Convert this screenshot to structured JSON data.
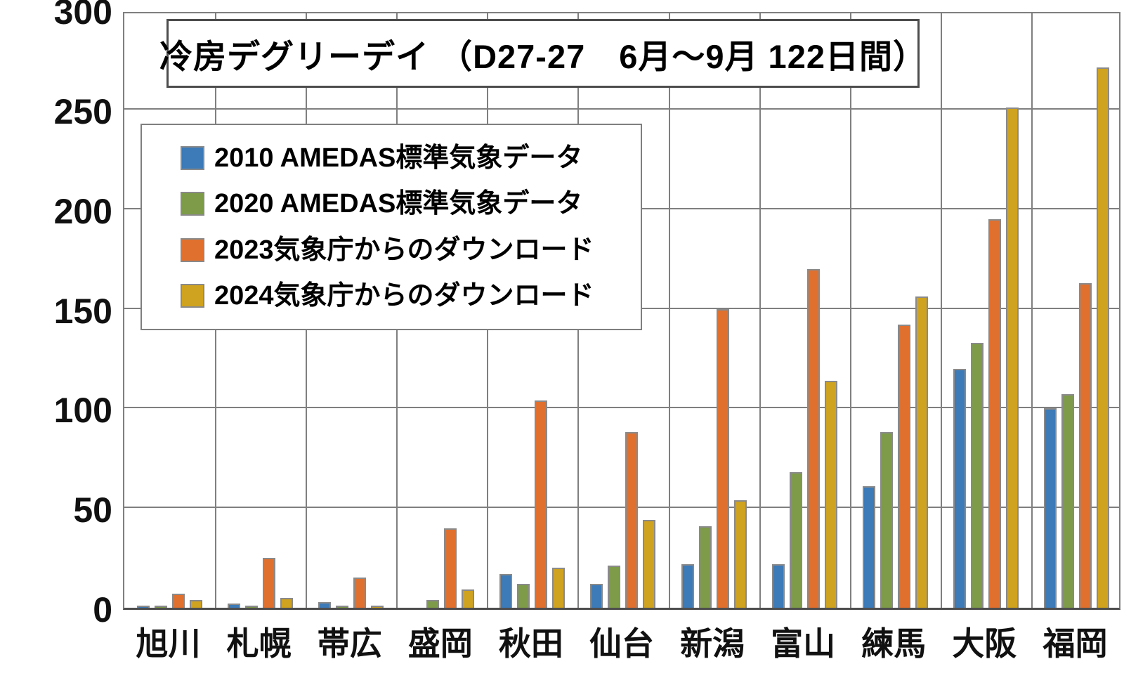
{
  "chart_data": {
    "type": "bar",
    "title": "冷房デグリーデイ （D27-27　6月～9月 122日間）",
    "categories": [
      "旭川",
      "札幌",
      "帯広",
      "盛岡",
      "秋田",
      "仙台",
      "新潟",
      "富山",
      "練馬",
      "大阪",
      "福岡"
    ],
    "series": [
      {
        "name": "2010 AMEDAS標準気象データ",
        "color": "#3c7ab8",
        "values": [
          1,
          2,
          3,
          0,
          17,
          12,
          22,
          22,
          61,
          120,
          100
        ]
      },
      {
        "name": "2020 AMEDAS標準気象データ",
        "color": "#7d9b49",
        "values": [
          1,
          1,
          1,
          4,
          12,
          21,
          41,
          68,
          88,
          133,
          107
        ]
      },
      {
        "name": "2023気象庁からのダウンロード",
        "color": "#e0702e",
        "values": [
          7,
          25,
          15,
          40,
          104,
          88,
          150,
          170,
          142,
          195,
          163
        ]
      },
      {
        "name": "2024気象庁からのダウンロード",
        "color": "#cfa21f",
        "values": [
          4,
          5,
          1,
          9,
          20,
          44,
          54,
          114,
          156,
          251,
          271
        ]
      }
    ],
    "xlabel": "",
    "ylabel": "",
    "ylim": [
      0,
      300
    ],
    "ytick_interval": 50,
    "yticks": [
      "0",
      "50",
      "100",
      "150",
      "200",
      "250",
      "300"
    ],
    "grid": true,
    "legend_position": "upper-left-inside",
    "colors": {
      "gridline": "#7f7f7f",
      "axis": "#4d4d4d",
      "bar_border": "#8a8a8a",
      "background": "#ffffff",
      "text": "#111111"
    }
  }
}
